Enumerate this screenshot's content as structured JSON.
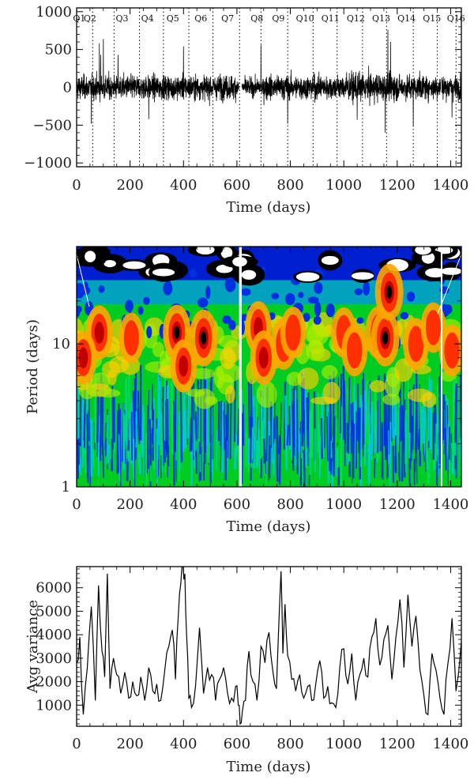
{
  "chart_data": [
    {
      "type": "line",
      "title": "",
      "xlabel": "Time (days)",
      "ylabel": "",
      "xlim": [
        0,
        1440
      ],
      "ylim": [
        -1050,
        1050
      ],
      "xticks": [
        0,
        200,
        400,
        600,
        800,
        1000,
        1200,
        1400
      ],
      "yticks": [
        -1000,
        -500,
        0,
        500,
        1000
      ],
      "ytick_labels": [
        "−1000",
        "−500",
        "0",
        "500",
        "1000"
      ],
      "quarters": {
        "labels": [
          "Q1",
          "Q2",
          "Q3",
          "Q4",
          "Q5",
          "Q6",
          "Q7",
          "Q8",
          "Q9",
          "Q10",
          "Q11",
          "Q12",
          "Q13",
          "Q14",
          "Q15",
          "Q16"
        ],
        "label_x": [
          10,
          50,
          170,
          265,
          360,
          465,
          565,
          675,
          755,
          855,
          950,
          1045,
          1140,
          1235,
          1330,
          1420
        ],
        "boundaries": [
          60,
          140,
          235,
          325,
          420,
          510,
          610,
          690,
          790,
          885,
          975,
          1070,
          1160,
          1260,
          1350,
          1420
        ]
      },
      "series": [
        {
          "style": "noisy-lightcurve",
          "gaps": [
            [
              608,
              618
            ],
            [
              1363,
              1366
            ]
          ],
          "spikes": [
            [
              85,
              580
            ],
            [
              100,
              640
            ],
            [
              155,
              430
            ],
            [
              400,
              540
            ],
            [
              690,
              560
            ],
            [
              1165,
              760
            ],
            [
              1175,
              600
            ],
            [
              1155,
              -600
            ],
            [
              1260,
              -520
            ],
            [
              55,
              -480
            ],
            [
              90,
              430
            ],
            [
              270,
              -420
            ],
            [
              790,
              -480
            ],
            [
              1050,
              -430
            ],
            [
              1405,
              -400
            ]
          ]
        }
      ]
    },
    {
      "type": "heatmap",
      "title": "",
      "xlabel": "Time (days)",
      "ylabel": "Period (days)",
      "xlim": [
        0,
        1440
      ],
      "ylim": [
        1,
        48
      ],
      "ylog": true,
      "xticks": [
        0,
        200,
        400,
        600,
        800,
        1000,
        1200,
        1400
      ],
      "yticks": [
        1,
        10
      ],
      "colormap": [
        "#ffffff",
        "#000000",
        "#1a0a6a",
        "#0020e0",
        "#0090ff",
        "#00d8d0",
        "#00d000",
        "#aaee00",
        "#ffa500",
        "#ff3000",
        "#c00000"
      ],
      "hotspots": [
        {
          "t": 85,
          "p": 12,
          "level": 0.9
        },
        {
          "t": 25,
          "p": 8,
          "level": 0.85
        },
        {
          "t": 205,
          "p": 11,
          "level": 0.75
        },
        {
          "t": 375,
          "p": 12,
          "level": 0.95
        },
        {
          "t": 400,
          "p": 7,
          "level": 0.85
        },
        {
          "t": 475,
          "p": 11,
          "level": 1.0
        },
        {
          "t": 680,
          "p": 13,
          "level": 0.85
        },
        {
          "t": 700,
          "p": 8,
          "level": 0.9
        },
        {
          "t": 775,
          "p": 10,
          "level": 0.8
        },
        {
          "t": 810,
          "p": 12,
          "level": 0.8
        },
        {
          "t": 1000,
          "p": 12,
          "level": 0.75
        },
        {
          "t": 1040,
          "p": 9,
          "level": 0.8
        },
        {
          "t": 1130,
          "p": 12,
          "level": 0.85
        },
        {
          "t": 1155,
          "p": 11,
          "level": 1.0
        },
        {
          "t": 1170,
          "p": 23,
          "level": 1.0
        },
        {
          "t": 1270,
          "p": 10,
          "level": 0.8
        },
        {
          "t": 1335,
          "p": 13,
          "level": 0.75
        },
        {
          "t": 1405,
          "p": 9,
          "level": 0.8
        }
      ],
      "gaps": [
        [
          608,
          618
        ],
        [
          1363,
          1366
        ]
      ]
    },
    {
      "type": "line",
      "title": "",
      "xlabel": "Time (days)",
      "ylabel": "Avg variance",
      "xlim": [
        0,
        1440
      ],
      "ylim": [
        100,
        6900
      ],
      "xticks": [
        0,
        200,
        400,
        600,
        800,
        1000,
        1200,
        1400
      ],
      "yticks": [
        1000,
        2000,
        3000,
        4000,
        5000,
        6000
      ],
      "series": [
        {
          "x": [
            0,
            12,
            25,
            40,
            55,
            70,
            82,
            95,
            105,
            115,
            125,
            138,
            150,
            165,
            180,
            195,
            210,
            225,
            240,
            255,
            270,
            285,
            300,
            315,
            330,
            345,
            358,
            370,
            380,
            390,
            398,
            405,
            412,
            420,
            430,
            445,
            460,
            475,
            490,
            505,
            520,
            535,
            550,
            565,
            580,
            595,
            605,
            612,
            620,
            632,
            645,
            660,
            675,
            690,
            705,
            720,
            735,
            748,
            758,
            765,
            772,
            780,
            790,
            805,
            820,
            835,
            850,
            865,
            880,
            895,
            910,
            925,
            940,
            955,
            970,
            985,
            1000,
            1015,
            1030,
            1045,
            1060,
            1075,
            1090,
            1105,
            1120,
            1135,
            1150,
            1165,
            1180,
            1195,
            1210,
            1225,
            1240,
            1255,
            1270,
            1285,
            1300,
            1315,
            1330,
            1345,
            1360,
            1375,
            1390,
            1405,
            1420,
            1440
          ],
          "y": [
            2800,
            3900,
            600,
            2600,
            5200,
            1200,
            6100,
            3300,
            2200,
            6600,
            1700,
            3000,
            2300,
            1500,
            2400,
            1300,
            2000,
            1400,
            2200,
            1200,
            2600,
            1600,
            1900,
            1200,
            2500,
            3500,
            4200,
            2100,
            4700,
            6200,
            7000,
            6600,
            3900,
            1300,
            900,
            1800,
            4300,
            1500,
            2600,
            2300,
            1200,
            2100,
            2600,
            1500,
            1300,
            1800,
            1000,
            200,
            700,
            1200,
            3300,
            2000,
            1200,
            3500,
            2800,
            4100,
            2400,
            1700,
            4800,
            6700,
            3200,
            5300,
            3100,
            2100,
            1600,
            2300,
            1300,
            1800,
            1200,
            1900,
            2900,
            1300,
            1800,
            1100,
            900,
            2600,
            3400,
            1900,
            3200,
            1200,
            2300,
            3000,
            2200,
            3900,
            4700,
            2700,
            3800,
            4400,
            2100,
            3900,
            5500,
            2600,
            5700,
            3500,
            4800,
            2500,
            1400,
            600,
            3200,
            2500,
            1300,
            600,
            2800,
            4700,
            1600,
            3700
          ]
        }
      ]
    }
  ]
}
